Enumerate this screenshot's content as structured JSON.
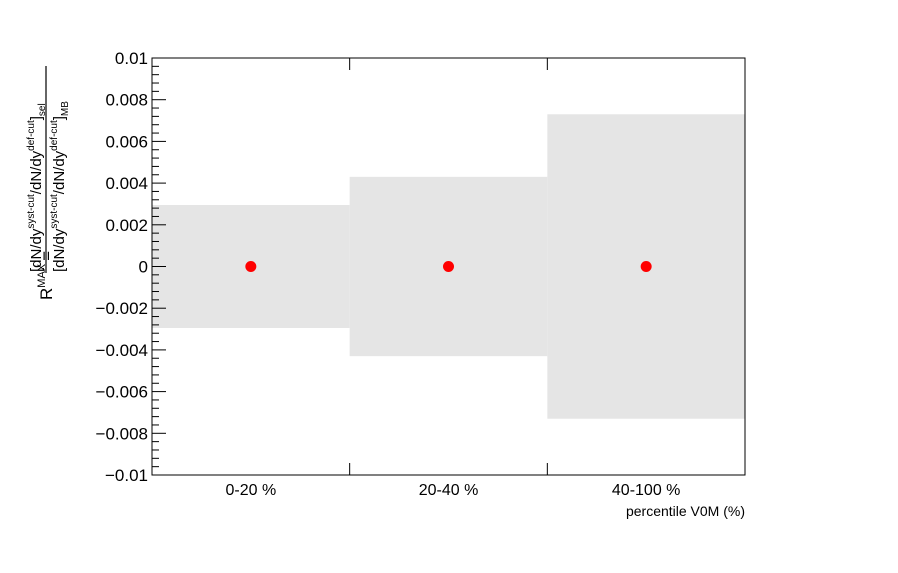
{
  "chart_data": {
    "type": "scatter",
    "categories": [
      "0-20 %",
      "20-40 %",
      "40-100 %"
    ],
    "values": [
      0,
      0,
      0
    ],
    "uncertainty": [
      0.00295,
      0.0043,
      0.0073
    ],
    "xlabel": "percentile V0M (%)",
    "ylabel": {
      "lhs_main": "R",
      "lhs_sup": "MAX",
      "equals": "=",
      "num": {
        "a": "[dN/dy",
        "sa": "syst-cut",
        "b": "/dN/dy",
        "sb": "def-cut",
        "c": "]",
        "sub": "sel"
      },
      "den": {
        "a": "[dN/dy",
        "sa": "syst-cut",
        "b": "/dN/dy",
        "sb": "def-cut",
        "c": "]",
        "sub": "MB"
      }
    },
    "ylim": [
      -0.01,
      0.01
    ],
    "yticks": [
      -0.01,
      -0.008,
      -0.006,
      -0.004,
      -0.002,
      0,
      0.002,
      0.004,
      0.006,
      0.008,
      0.01
    ],
    "ytick_labels": [
      "−0.01",
      "−0.008",
      "−0.006",
      "−0.004",
      "−0.002",
      "0",
      "0.002",
      "0.004",
      "0.006",
      "0.008",
      "0.01"
    ],
    "grid": false,
    "colors": {
      "marker": "#ff0000",
      "band": "#e5e5e5",
      "axis": "#000000"
    }
  }
}
